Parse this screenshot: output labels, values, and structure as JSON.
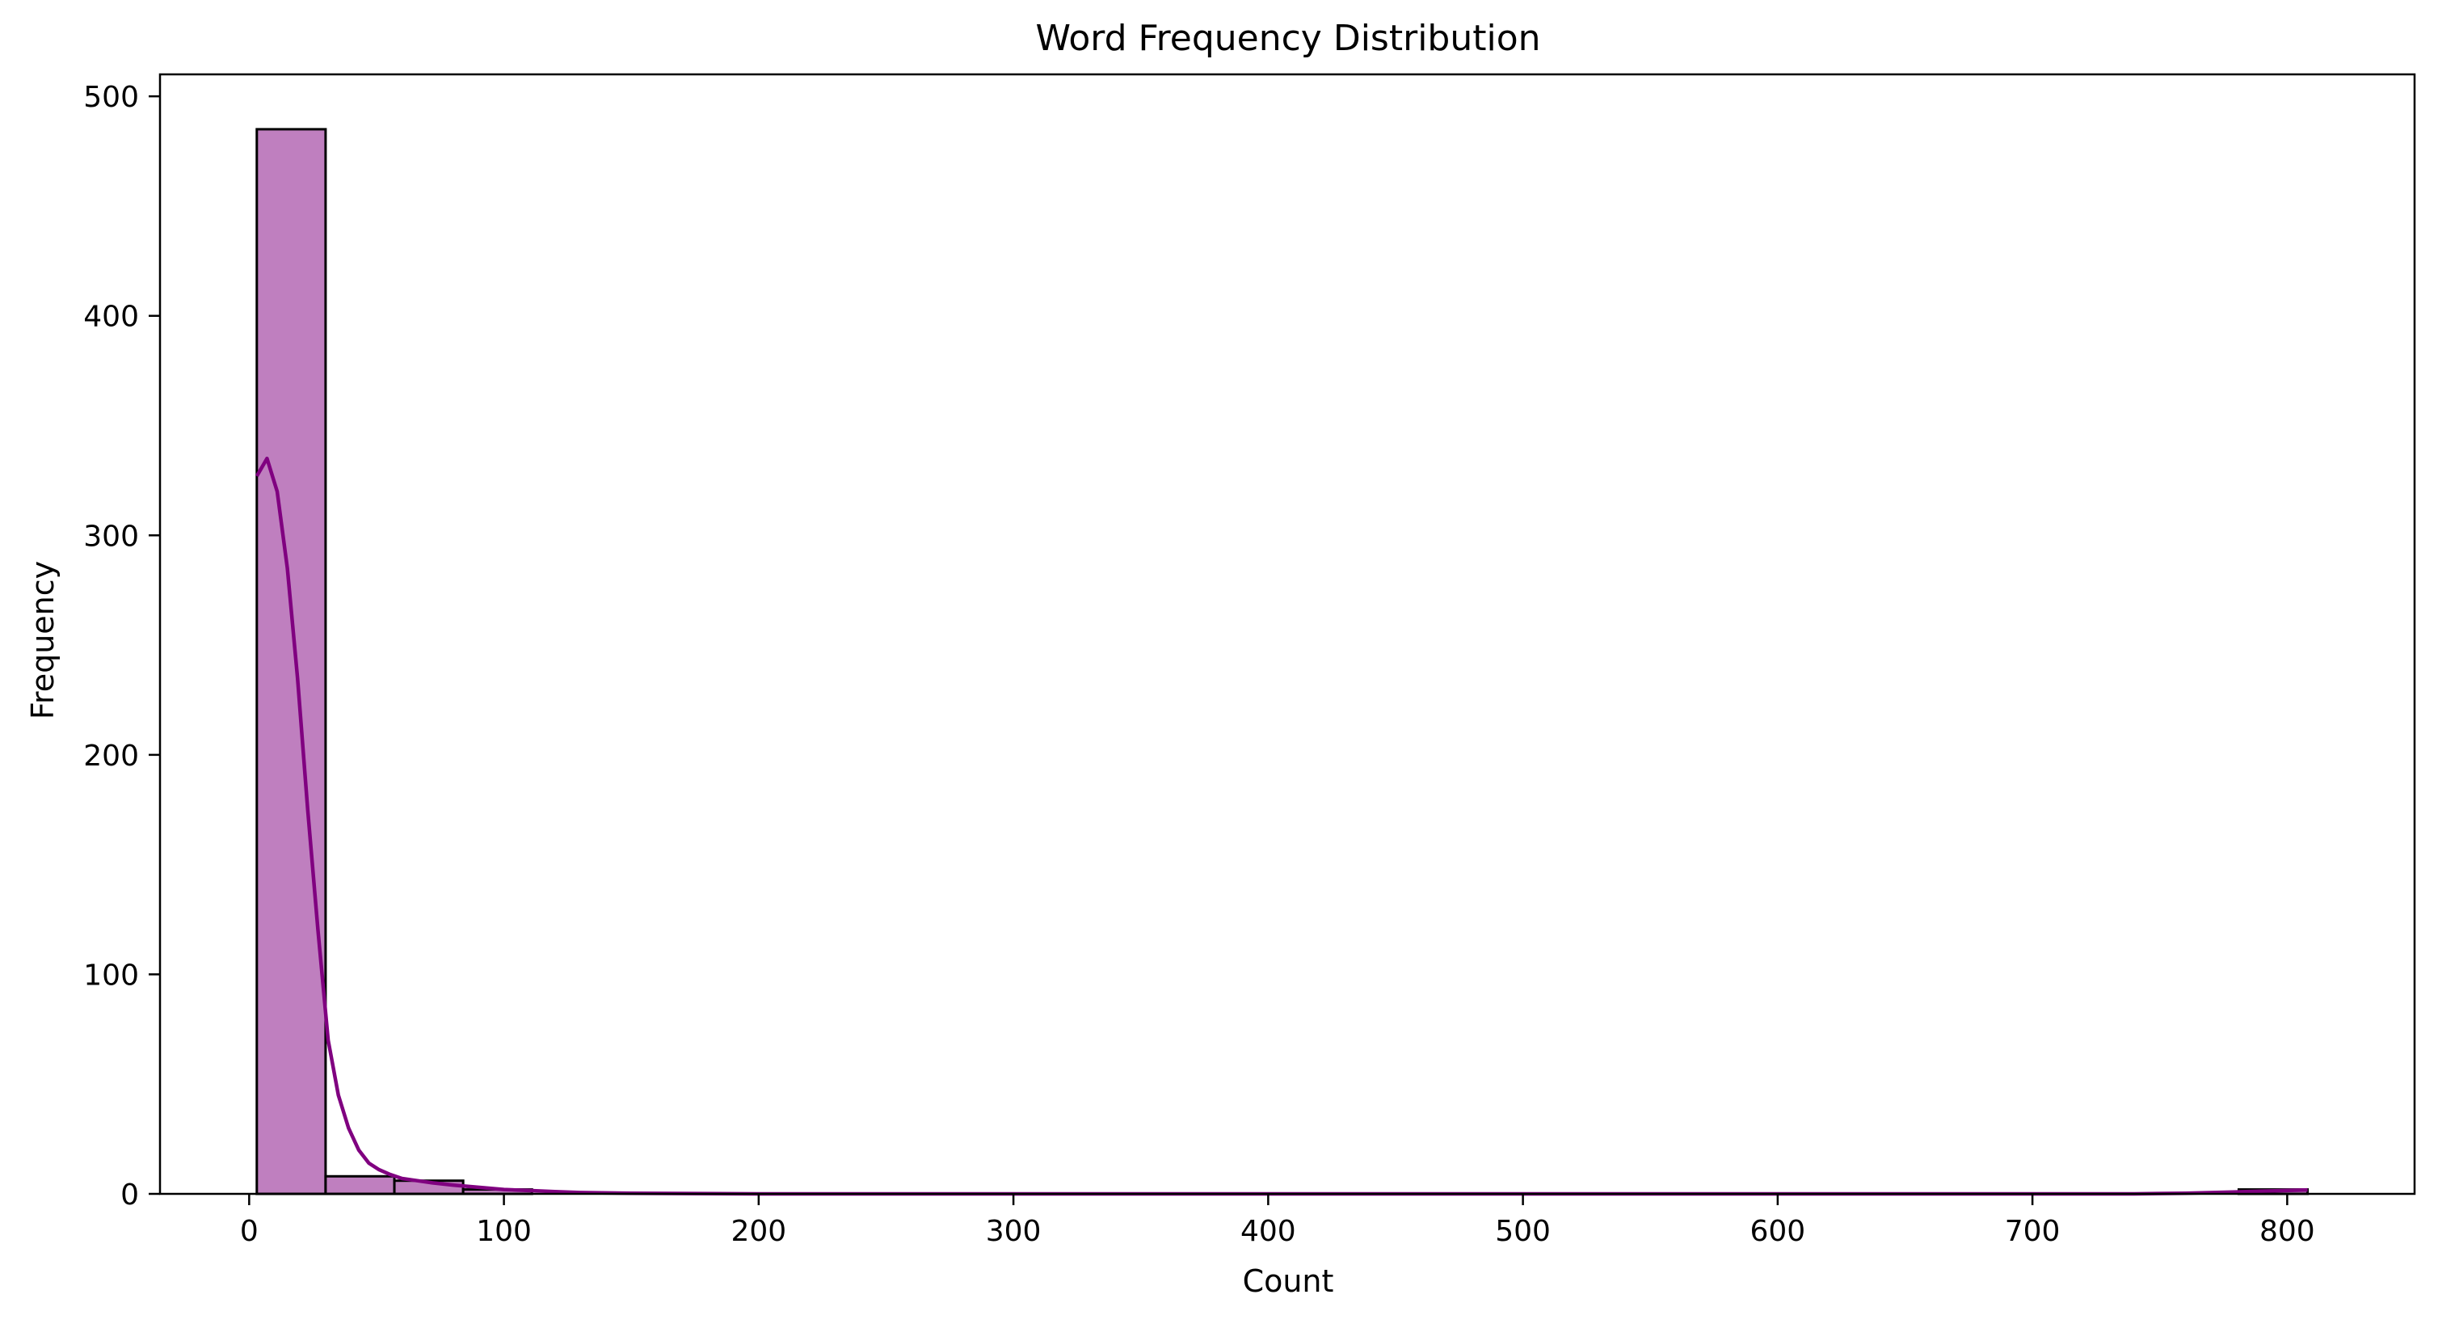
{
  "chart_data": {
    "type": "bar",
    "subtype": "histogram-with-kde",
    "title": "Word Frequency Distribution",
    "xlabel": "Count",
    "ylabel": "Frequency",
    "xlim": [
      -35,
      850
    ],
    "ylim": [
      0,
      510
    ],
    "xticks": [
      0,
      100,
      200,
      300,
      400,
      500,
      600,
      700,
      800
    ],
    "yticks": [
      0,
      100,
      200,
      300,
      400,
      500
    ],
    "grid": false,
    "legend": "none",
    "bar_fill": "#bf7fbf",
    "bar_edge": "#000000",
    "kde_color": "#800080",
    "bins": [
      {
        "x0": 3,
        "x1": 30,
        "value": 485
      },
      {
        "x0": 30,
        "x1": 57,
        "value": 8
      },
      {
        "x0": 57,
        "x1": 84,
        "value": 6
      },
      {
        "x0": 84,
        "x1": 111,
        "value": 2
      },
      {
        "x0": 111,
        "x1": 138,
        "value": 0
      },
      {
        "x0": 138,
        "x1": 165,
        "value": 0
      },
      {
        "x0": 165,
        "x1": 192,
        "value": 0
      },
      {
        "x0": 192,
        "x1": 219,
        "value": 0
      },
      {
        "x0": 219,
        "x1": 246,
        "value": 0
      },
      {
        "x0": 246,
        "x1": 273,
        "value": 0
      },
      {
        "x0": 273,
        "x1": 300,
        "value": 0
      },
      {
        "x0": 300,
        "x1": 327,
        "value": 0
      },
      {
        "x0": 327,
        "x1": 354,
        "value": 0
      },
      {
        "x0": 354,
        "x1": 381,
        "value": 0
      },
      {
        "x0": 381,
        "x1": 408,
        "value": 0
      },
      {
        "x0": 408,
        "x1": 435,
        "value": 0
      },
      {
        "x0": 435,
        "x1": 462,
        "value": 0
      },
      {
        "x0": 462,
        "x1": 489,
        "value": 0
      },
      {
        "x0": 489,
        "x1": 516,
        "value": 0
      },
      {
        "x0": 516,
        "x1": 543,
        "value": 0
      },
      {
        "x0": 543,
        "x1": 570,
        "value": 0
      },
      {
        "x0": 570,
        "x1": 597,
        "value": 0
      },
      {
        "x0": 597,
        "x1": 624,
        "value": 0
      },
      {
        "x0": 624,
        "x1": 651,
        "value": 0
      },
      {
        "x0": 651,
        "x1": 678,
        "value": 0
      },
      {
        "x0": 678,
        "x1": 705,
        "value": 0
      },
      {
        "x0": 705,
        "x1": 732,
        "value": 0
      },
      {
        "x0": 732,
        "x1": 759,
        "value": 0
      },
      {
        "x0": 759,
        "x1": 781,
        "value": 0
      },
      {
        "x0": 781,
        "x1": 808,
        "value": 2
      }
    ],
    "kde": {
      "x": [
        3,
        7,
        11,
        15,
        19,
        23,
        27,
        31,
        35,
        39,
        43,
        47,
        51,
        55,
        60,
        66,
        72,
        80,
        90,
        100,
        110,
        120,
        130,
        150,
        200,
        300,
        400,
        500,
        600,
        700,
        740,
        760,
        780,
        795,
        808
      ],
      "y": [
        327,
        335,
        320,
        285,
        235,
        175,
        120,
        70,
        45,
        30,
        20,
        14,
        11,
        9,
        7,
        6,
        5,
        4,
        3,
        2,
        1.5,
        1,
        0.6,
        0.3,
        0,
        0,
        0,
        0,
        0,
        0,
        0,
        0.3,
        0.9,
        1.4,
        1.8
      ]
    }
  }
}
